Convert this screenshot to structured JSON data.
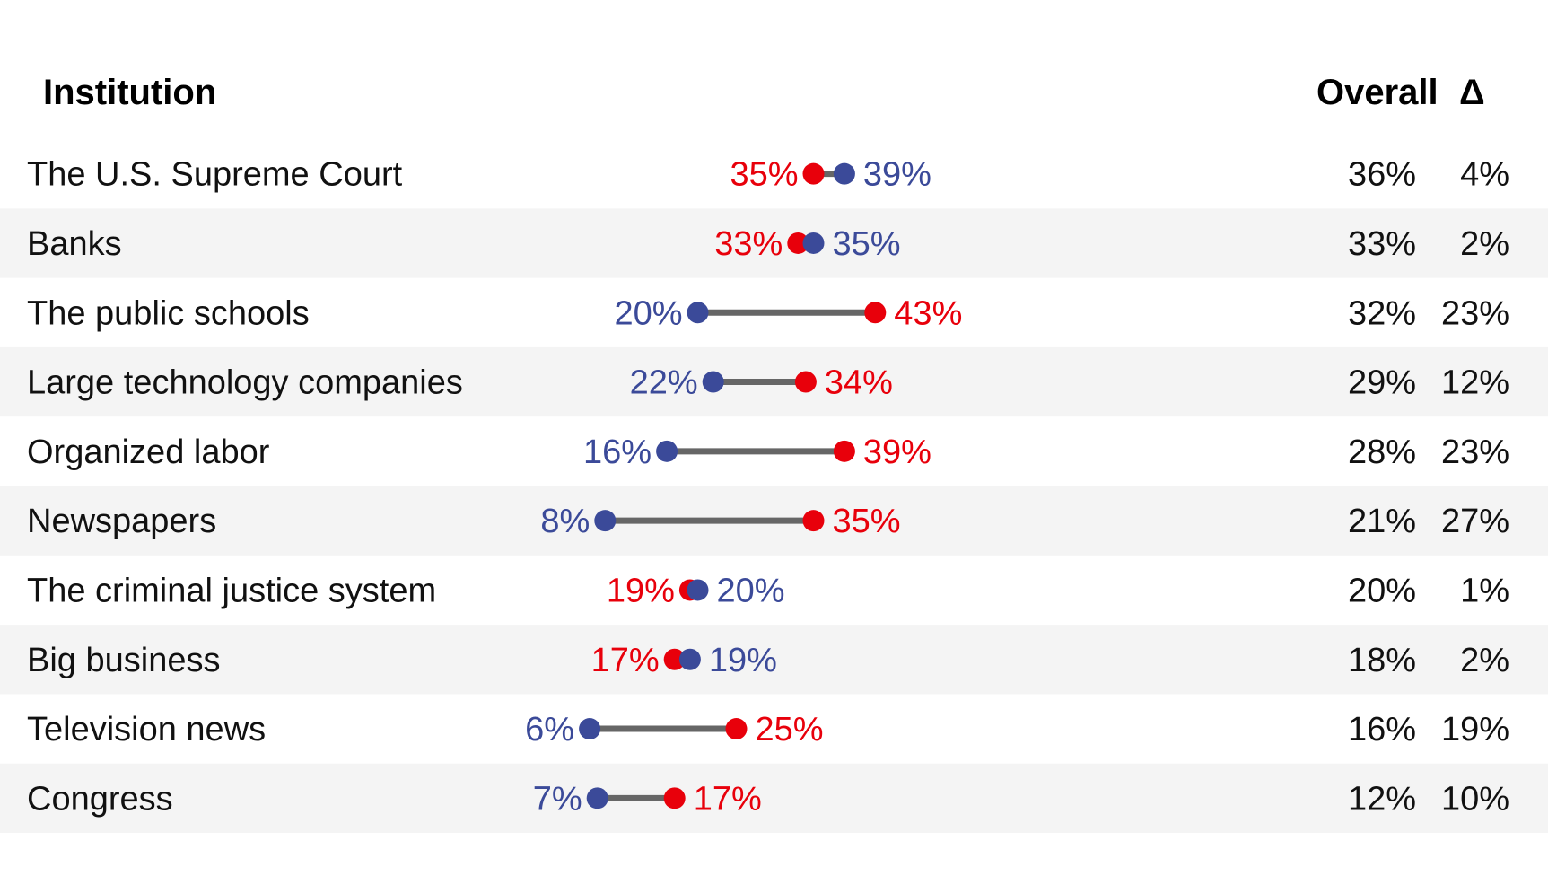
{
  "header": {
    "institution": "Institution",
    "overall": "Overall",
    "delta": "Δ"
  },
  "colors": {
    "series_a": "#e8000b",
    "series_b": "#3b4a99",
    "connector": "#666666",
    "row_stripe": "#f4f4f4",
    "text": "#111111"
  },
  "chart_data": {
    "type": "dumbbell",
    "x_unit": "%",
    "grid": false,
    "rows": [
      {
        "institution": "The U.S. Supreme Court",
        "red": 35,
        "blue": 39,
        "overall": "36%",
        "delta": "4%"
      },
      {
        "institution": "Banks",
        "red": 33,
        "blue": 35,
        "overall": "33%",
        "delta": "2%"
      },
      {
        "institution": "The public schools",
        "red": 43,
        "blue": 20,
        "overall": "32%",
        "delta": "23%"
      },
      {
        "institution": "Large technology companies",
        "red": 34,
        "blue": 22,
        "overall": "29%",
        "delta": "12%"
      },
      {
        "institution": "Organized labor",
        "red": 39,
        "blue": 16,
        "overall": "28%",
        "delta": "23%"
      },
      {
        "institution": "Newspapers",
        "red": 35,
        "blue": 8,
        "overall": "21%",
        "delta": "27%"
      },
      {
        "institution": "The criminal justice system",
        "red": 19,
        "blue": 20,
        "overall": "20%",
        "delta": "1%"
      },
      {
        "institution": "Big business",
        "red": 17,
        "blue": 19,
        "overall": "18%",
        "delta": "2%"
      },
      {
        "institution": "Television news",
        "red": 25,
        "blue": 6,
        "overall": "16%",
        "delta": "19%"
      },
      {
        "institution": "Congress",
        "red": 17,
        "blue": 7,
        "overall": "12%",
        "delta": "10%"
      }
    ]
  }
}
